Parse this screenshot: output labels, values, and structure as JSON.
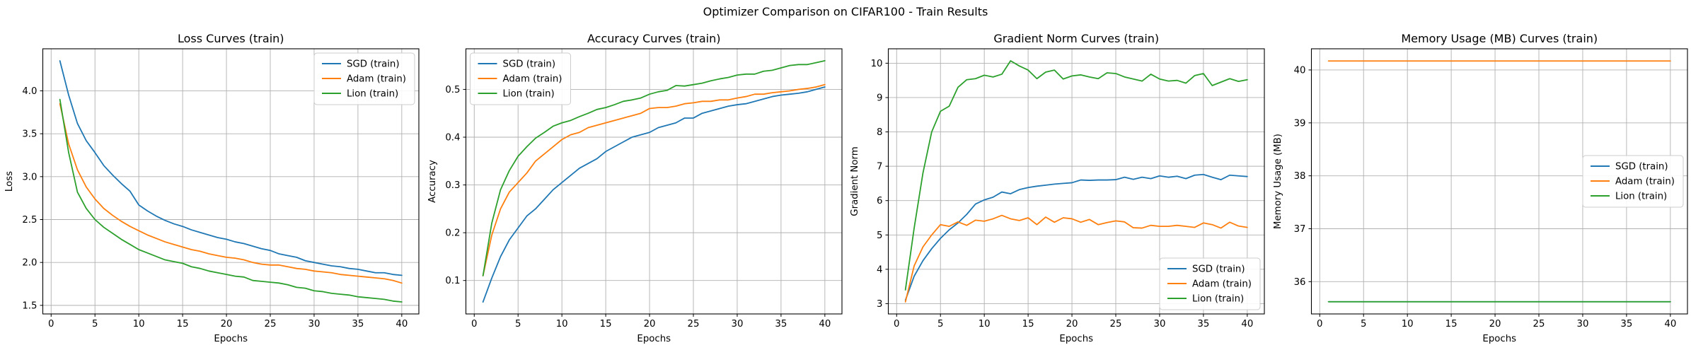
{
  "figure": {
    "title": "Optimizer Comparison on CIFAR100 - Train Results"
  },
  "palette": {
    "sgd": "#1f77b4",
    "adam": "#ff7f0e",
    "lion": "#2ca02c"
  },
  "chart_data": [
    {
      "type": "line",
      "title": "Loss Curves (train)",
      "xlabel": "Epochs",
      "ylabel": "Loss",
      "legend_loc": "upper right",
      "grid": true,
      "xlim": [
        -0.95,
        41.95
      ],
      "ylim": [
        1.4,
        4.49
      ],
      "xticks": [
        0,
        5,
        10,
        15,
        20,
        25,
        30,
        35,
        40
      ],
      "yticks": [
        1.5,
        2.0,
        2.5,
        3.0,
        3.5,
        4.0
      ],
      "ytick_labels": [
        "1.5",
        "2.0",
        "2.5",
        "3.0",
        "3.5",
        "4.0"
      ],
      "x": [
        1,
        2,
        3,
        4,
        5,
        6,
        7,
        8,
        9,
        10,
        11,
        12,
        13,
        14,
        15,
        16,
        17,
        18,
        19,
        20,
        21,
        22,
        23,
        24,
        25,
        26,
        27,
        28,
        29,
        30,
        31,
        32,
        33,
        34,
        35,
        36,
        37,
        38,
        39,
        40
      ],
      "series": [
        {
          "name": "SGD (train)",
          "color": "#1f77b4",
          "values": [
            4.35,
            3.95,
            3.62,
            3.42,
            3.28,
            3.13,
            3.02,
            2.92,
            2.83,
            2.67,
            2.6,
            2.54,
            2.49,
            2.45,
            2.42,
            2.38,
            2.35,
            2.32,
            2.29,
            2.27,
            2.24,
            2.22,
            2.19,
            2.16,
            2.14,
            2.1,
            2.08,
            2.06,
            2.02,
            2.0,
            1.98,
            1.96,
            1.95,
            1.93,
            1.92,
            1.9,
            1.88,
            1.88,
            1.86,
            1.85
          ]
        },
        {
          "name": "Adam (train)",
          "color": "#ff7f0e",
          "values": [
            3.85,
            3.38,
            3.08,
            2.88,
            2.74,
            2.63,
            2.55,
            2.48,
            2.42,
            2.37,
            2.32,
            2.28,
            2.24,
            2.21,
            2.18,
            2.15,
            2.13,
            2.1,
            2.08,
            2.06,
            2.05,
            2.03,
            2.0,
            1.98,
            1.97,
            1.97,
            1.95,
            1.93,
            1.92,
            1.9,
            1.89,
            1.88,
            1.86,
            1.85,
            1.84,
            1.83,
            1.82,
            1.81,
            1.79,
            1.76
          ]
        },
        {
          "name": "Lion (train)",
          "color": "#2ca02c",
          "values": [
            3.9,
            3.28,
            2.82,
            2.63,
            2.5,
            2.41,
            2.34,
            2.27,
            2.21,
            2.15,
            2.11,
            2.07,
            2.03,
            2.01,
            1.99,
            1.95,
            1.93,
            1.9,
            1.88,
            1.86,
            1.84,
            1.83,
            1.79,
            1.78,
            1.77,
            1.76,
            1.74,
            1.71,
            1.7,
            1.67,
            1.66,
            1.64,
            1.63,
            1.62,
            1.6,
            1.59,
            1.58,
            1.57,
            1.55,
            1.54
          ]
        }
      ]
    },
    {
      "type": "line",
      "title": "Accuracy Curves (train)",
      "xlabel": "Epochs",
      "ylabel": "Accuracy",
      "legend_loc": "upper left",
      "grid": true,
      "xlim": [
        -0.95,
        41.95
      ],
      "ylim": [
        0.03,
        0.585
      ],
      "xticks": [
        0,
        5,
        10,
        15,
        20,
        25,
        30,
        35,
        40
      ],
      "yticks": [
        0.1,
        0.2,
        0.3,
        0.4,
        0.5
      ],
      "ytick_labels": [
        "0.1",
        "0.2",
        "0.3",
        "0.4",
        "0.5"
      ],
      "x": [
        1,
        2,
        3,
        4,
        5,
        6,
        7,
        8,
        9,
        10,
        11,
        12,
        13,
        14,
        15,
        16,
        17,
        18,
        19,
        20,
        21,
        22,
        23,
        24,
        25,
        26,
        27,
        28,
        29,
        30,
        31,
        32,
        33,
        34,
        35,
        36,
        37,
        38,
        39,
        40
      ],
      "series": [
        {
          "name": "SGD (train)",
          "color": "#1f77b4",
          "values": [
            0.055,
            0.105,
            0.15,
            0.185,
            0.21,
            0.235,
            0.25,
            0.27,
            0.29,
            0.305,
            0.32,
            0.335,
            0.345,
            0.355,
            0.37,
            0.38,
            0.39,
            0.4,
            0.405,
            0.41,
            0.42,
            0.425,
            0.43,
            0.44,
            0.44,
            0.45,
            0.455,
            0.46,
            0.465,
            0.468,
            0.47,
            0.475,
            0.48,
            0.485,
            0.488,
            0.49,
            0.492,
            0.495,
            0.5,
            0.505
          ]
        },
        {
          "name": "Adam (train)",
          "color": "#ff7f0e",
          "values": [
            0.11,
            0.195,
            0.25,
            0.285,
            0.305,
            0.325,
            0.35,
            0.365,
            0.38,
            0.395,
            0.405,
            0.41,
            0.42,
            0.425,
            0.43,
            0.435,
            0.44,
            0.445,
            0.45,
            0.46,
            0.462,
            0.462,
            0.465,
            0.47,
            0.472,
            0.475,
            0.475,
            0.478,
            0.478,
            0.482,
            0.485,
            0.49,
            0.49,
            0.493,
            0.495,
            0.497,
            0.5,
            0.502,
            0.505,
            0.51
          ]
        },
        {
          "name": "Lion (train)",
          "color": "#2ca02c",
          "values": [
            0.11,
            0.22,
            0.29,
            0.33,
            0.36,
            0.38,
            0.398,
            0.41,
            0.423,
            0.43,
            0.435,
            0.443,
            0.45,
            0.458,
            0.462,
            0.468,
            0.475,
            0.478,
            0.482,
            0.49,
            0.495,
            0.498,
            0.508,
            0.507,
            0.51,
            0.513,
            0.518,
            0.522,
            0.525,
            0.53,
            0.532,
            0.532,
            0.538,
            0.54,
            0.545,
            0.55,
            0.552,
            0.552,
            0.556,
            0.56
          ]
        }
      ]
    },
    {
      "type": "line",
      "title": "Gradient Norm Curves (train)",
      "xlabel": "Epochs",
      "ylabel": "Gradient Norm",
      "legend_loc": "lower right",
      "grid": true,
      "xlim": [
        -0.95,
        41.95
      ],
      "ylim": [
        2.7,
        10.42
      ],
      "xticks": [
        0,
        5,
        10,
        15,
        20,
        25,
        30,
        35,
        40
      ],
      "yticks": [
        3,
        4,
        5,
        6,
        7,
        8,
        9,
        10
      ],
      "ytick_labels": [
        "3",
        "4",
        "5",
        "6",
        "7",
        "8",
        "9",
        "10"
      ],
      "x": [
        1,
        2,
        3,
        4,
        5,
        6,
        7,
        8,
        9,
        10,
        11,
        12,
        13,
        14,
        15,
        16,
        17,
        18,
        19,
        20,
        21,
        22,
        23,
        24,
        25,
        26,
        27,
        28,
        29,
        30,
        31,
        32,
        33,
        34,
        35,
        36,
        37,
        38,
        39,
        40
      ],
      "series": [
        {
          "name": "SGD (train)",
          "color": "#1f77b4",
          "values": [
            3.1,
            3.8,
            4.25,
            4.6,
            4.9,
            5.15,
            5.35,
            5.6,
            5.9,
            6.02,
            6.1,
            6.25,
            6.2,
            6.32,
            6.38,
            6.42,
            6.45,
            6.48,
            6.5,
            6.52,
            6.6,
            6.59,
            6.6,
            6.6,
            6.61,
            6.68,
            6.62,
            6.68,
            6.64,
            6.72,
            6.68,
            6.71,
            6.64,
            6.74,
            6.76,
            6.68,
            6.61,
            6.74,
            6.72,
            6.7
          ]
        },
        {
          "name": "Adam (train)",
          "color": "#ff7f0e",
          "values": [
            3.05,
            4.1,
            4.65,
            5.0,
            5.3,
            5.25,
            5.38,
            5.28,
            5.43,
            5.4,
            5.47,
            5.57,
            5.47,
            5.42,
            5.5,
            5.3,
            5.52,
            5.37,
            5.5,
            5.47,
            5.37,
            5.45,
            5.3,
            5.36,
            5.41,
            5.38,
            5.21,
            5.2,
            5.28,
            5.25,
            5.25,
            5.28,
            5.25,
            5.22,
            5.35,
            5.3,
            5.2,
            5.37,
            5.26,
            5.22
          ]
        },
        {
          "name": "Lion (train)",
          "color": "#2ca02c",
          "values": [
            3.4,
            5.2,
            6.8,
            8.0,
            8.6,
            8.75,
            9.3,
            9.52,
            9.55,
            9.65,
            9.6,
            9.68,
            10.07,
            9.92,
            9.8,
            9.55,
            9.74,
            9.8,
            9.54,
            9.63,
            9.66,
            9.6,
            9.55,
            9.72,
            9.7,
            9.6,
            9.54,
            9.48,
            9.68,
            9.54,
            9.48,
            9.5,
            9.42,
            9.64,
            9.7,
            9.35,
            9.45,
            9.55,
            9.47,
            9.52
          ]
        }
      ]
    },
    {
      "type": "line",
      "title": "Memory Usage (MB) Curves (train)",
      "xlabel": "Epochs",
      "ylabel": "Memory Usage (MB)",
      "legend_loc": "center right",
      "grid": true,
      "xlim": [
        -0.95,
        41.95
      ],
      "ylim": [
        35.39,
        40.4
      ],
      "xticks": [
        0,
        5,
        10,
        15,
        20,
        25,
        30,
        35,
        40
      ],
      "yticks": [
        36,
        37,
        38,
        39,
        40
      ],
      "ytick_labels": [
        "36",
        "37",
        "38",
        "39",
        "40"
      ],
      "x": [
        1,
        2,
        3,
        4,
        5,
        6,
        7,
        8,
        9,
        10,
        11,
        12,
        13,
        14,
        15,
        16,
        17,
        18,
        19,
        20,
        21,
        22,
        23,
        24,
        25,
        26,
        27,
        28,
        29,
        30,
        31,
        32,
        33,
        34,
        35,
        36,
        37,
        38,
        39,
        40
      ],
      "series": [
        {
          "name": "SGD (train)",
          "color": "#1f77b4",
          "values": [
            35.62,
            35.62,
            35.62,
            35.62,
            35.62,
            35.62,
            35.62,
            35.62,
            35.62,
            35.62,
            35.62,
            35.62,
            35.62,
            35.62,
            35.62,
            35.62,
            35.62,
            35.62,
            35.62,
            35.62,
            35.62,
            35.62,
            35.62,
            35.62,
            35.62,
            35.62,
            35.62,
            35.62,
            35.62,
            35.62,
            35.62,
            35.62,
            35.62,
            35.62,
            35.62,
            35.62,
            35.62,
            35.62,
            35.62,
            35.62
          ]
        },
        {
          "name": "Adam (train)",
          "color": "#ff7f0e",
          "values": [
            40.17,
            40.17,
            40.17,
            40.17,
            40.17,
            40.17,
            40.17,
            40.17,
            40.17,
            40.17,
            40.17,
            40.17,
            40.17,
            40.17,
            40.17,
            40.17,
            40.17,
            40.17,
            40.17,
            40.17,
            40.17,
            40.17,
            40.17,
            40.17,
            40.17,
            40.17,
            40.17,
            40.17,
            40.17,
            40.17,
            40.17,
            40.17,
            40.17,
            40.17,
            40.17,
            40.17,
            40.17,
            40.17,
            40.17,
            40.17
          ]
        },
        {
          "name": "Lion (train)",
          "color": "#2ca02c",
          "values": [
            35.62,
            35.62,
            35.62,
            35.62,
            35.62,
            35.62,
            35.62,
            35.62,
            35.62,
            35.62,
            35.62,
            35.62,
            35.62,
            35.62,
            35.62,
            35.62,
            35.62,
            35.62,
            35.62,
            35.62,
            35.62,
            35.62,
            35.62,
            35.62,
            35.62,
            35.62,
            35.62,
            35.62,
            35.62,
            35.62,
            35.62,
            35.62,
            35.62,
            35.62,
            35.62,
            35.62,
            35.62,
            35.62,
            35.62,
            35.62
          ]
        }
      ]
    }
  ]
}
